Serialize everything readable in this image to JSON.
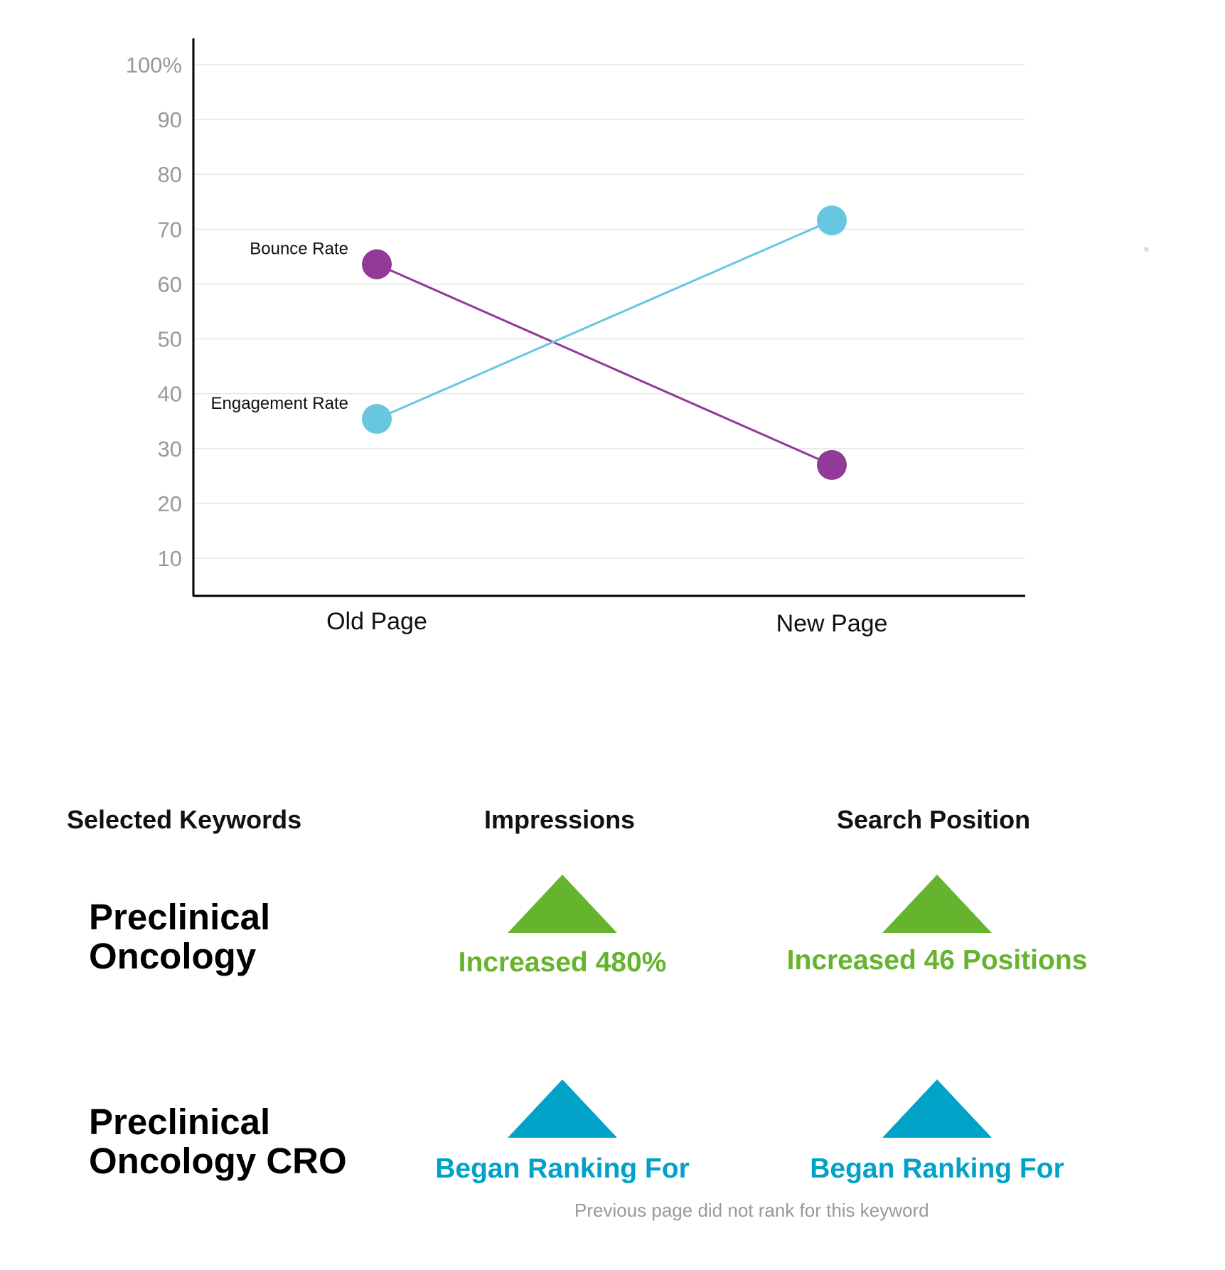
{
  "chart_data": {
    "type": "line",
    "categories": [
      "Old Page",
      "New Page"
    ],
    "ylim": [
      3,
      100
    ],
    "yticks": [
      10,
      20,
      30,
      40,
      50,
      60,
      70,
      80,
      90,
      100
    ],
    "ytick_labels": [
      "10",
      "20",
      "30",
      "40",
      "50",
      "60",
      "70",
      "80",
      "90",
      "100%"
    ],
    "grid": true,
    "series": [
      {
        "name": "Bounce Rate",
        "values": [
          63.6,
          27
        ],
        "color": "#913a97"
      },
      {
        "name": "Engagement Rate",
        "values": [
          35.4,
          71.6
        ],
        "color": "#68c6e0"
      }
    ]
  },
  "table": {
    "headers": {
      "keywords": "Selected Keywords",
      "impressions": "Impressions",
      "position": "Search Position"
    },
    "rows": [
      {
        "keyword_line1": "Preclinical",
        "keyword_line2": "Oncology",
        "impressions": "Increased 480%",
        "position": "Increased 46 Positions",
        "color": "#66b32e",
        "icon": "triangle-up-icon"
      },
      {
        "keyword_line1": "Preclinical",
        "keyword_line2": "Oncology CRO",
        "impressions": "Began Ranking For",
        "position": "Began Ranking For",
        "color": "#00a2c8",
        "icon": "triangle-up-icon"
      }
    ],
    "note": "Previous page did not rank for this keyword"
  }
}
